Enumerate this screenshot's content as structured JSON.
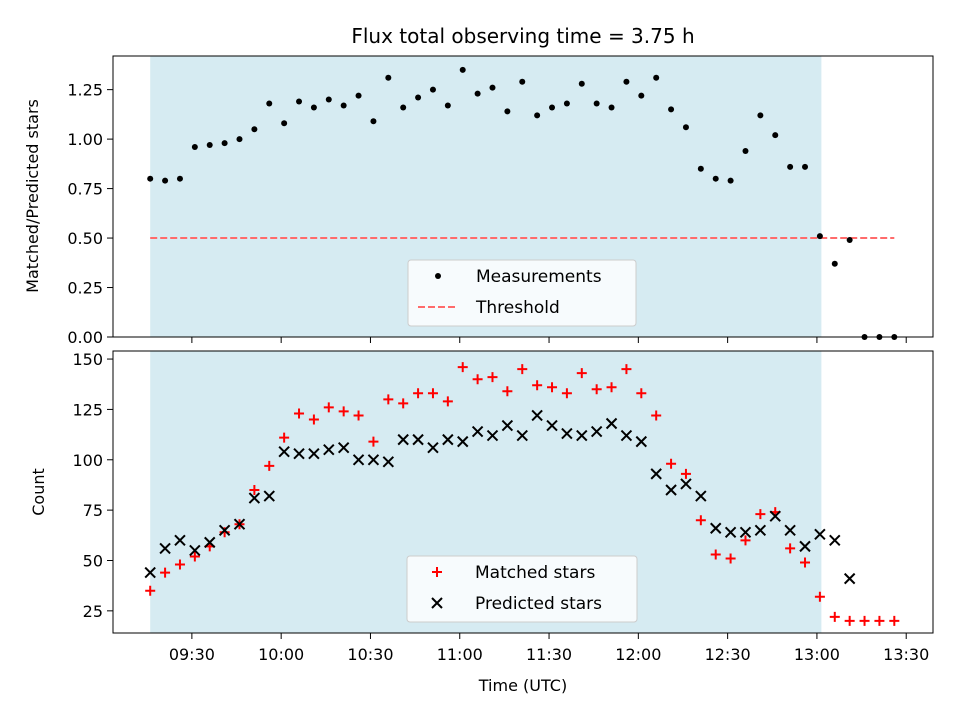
{
  "chart_data": [
    {
      "type": "scatter",
      "title": "Flux total observing time = 3.75 h",
      "xlabel": "",
      "ylabel": "Matched/Predicted stars",
      "ylim": [
        0,
        1.42
      ],
      "yticks": [
        0.0,
        0.25,
        0.5,
        0.75,
        1.0,
        1.25
      ],
      "ytick_labels": [
        "0.00",
        "0.25",
        "0.50",
        "0.75",
        "1.00",
        "1.25"
      ],
      "observing_window": {
        "start_min": 556,
        "end_min": 781.5
      },
      "series": [
        {
          "name": "Measurements",
          "marker": "dot",
          "color": "#000000",
          "x_min": [
            556,
            561,
            566,
            571,
            576,
            581,
            586,
            591,
            596,
            601,
            606,
            611,
            616,
            621,
            626,
            631,
            636,
            641,
            646,
            651,
            656,
            661,
            666,
            671,
            676,
            681,
            686,
            691,
            696,
            701,
            706,
            711,
            716,
            721,
            726,
            731,
            736,
            741,
            746,
            751,
            756,
            761,
            766,
            771,
            776,
            781,
            786,
            791,
            796,
            801,
            806
          ],
          "values": [
            0.8,
            0.79,
            0.8,
            0.96,
            0.97,
            0.98,
            1.0,
            1.05,
            1.18,
            1.08,
            1.19,
            1.16,
            1.2,
            1.17,
            1.22,
            1.09,
            1.31,
            1.16,
            1.21,
            1.25,
            1.17,
            1.35,
            1.23,
            1.26,
            1.14,
            1.29,
            1.12,
            1.16,
            1.18,
            1.28,
            1.18,
            1.16,
            1.29,
            1.22,
            1.31,
            1.15,
            1.06,
            0.85,
            0.8,
            0.79,
            0.94,
            1.12,
            1.02,
            0.86,
            0.86,
            0.51,
            0.37,
            0.49,
            0.0,
            0.0,
            0.0
          ]
        },
        {
          "name": "Threshold",
          "line_style": "dashed",
          "color": "#ff6b6b",
          "x_min": [
            556,
            806
          ],
          "values": [
            0.5,
            0.5
          ]
        }
      ],
      "legend": [
        "Measurements",
        "Threshold"
      ],
      "legend_position": "bottom-center"
    },
    {
      "type": "scatter",
      "title": "",
      "xlabel": "Time (UTC)",
      "ylabel": "Count",
      "ylim": [
        14,
        154
      ],
      "yticks": [
        25,
        50,
        75,
        100,
        125,
        150
      ],
      "ytick_labels": [
        "25",
        "50",
        "75",
        "100",
        "125",
        "150"
      ],
      "xlim_min": [
        543.5,
        819
      ],
      "xticks_min": [
        570,
        600,
        630,
        660,
        690,
        720,
        750,
        780,
        810
      ],
      "xtick_labels": [
        "09:30",
        "10:00",
        "10:30",
        "11:00",
        "11:30",
        "12:00",
        "12:30",
        "13:00",
        "13:30"
      ],
      "observing_window": {
        "start_min": 556,
        "end_min": 781.5
      },
      "series": [
        {
          "name": "Matched stars",
          "marker": "plus",
          "color": "#ff0000",
          "x_min": [
            556,
            561,
            566,
            571,
            576,
            581,
            586,
            591,
            596,
            601,
            606,
            611,
            616,
            621,
            626,
            631,
            636,
            641,
            646,
            651,
            656,
            661,
            666,
            671,
            676,
            681,
            686,
            691,
            696,
            701,
            706,
            711,
            716,
            721,
            726,
            731,
            736,
            741,
            746,
            751,
            756,
            761,
            766,
            771,
            776,
            781,
            786,
            791,
            796,
            801,
            806
          ],
          "values": [
            35,
            44,
            48,
            52,
            57,
            64,
            68,
            85,
            97,
            111,
            123,
            120,
            126,
            124,
            122,
            109,
            130,
            128,
            133,
            133,
            129,
            146,
            140,
            141,
            134,
            145,
            137,
            136,
            133,
            143,
            135,
            136,
            145,
            133,
            122,
            98,
            93,
            70,
            53,
            51,
            60,
            73,
            74,
            56,
            49,
            32,
            22,
            20,
            20,
            20,
            20
          ]
        },
        {
          "name": "Predicted stars",
          "marker": "x",
          "color": "#000000",
          "x_min": [
            556,
            561,
            566,
            571,
            576,
            581,
            586,
            591,
            596,
            601,
            606,
            611,
            616,
            621,
            626,
            631,
            636,
            641,
            646,
            651,
            656,
            661,
            666,
            671,
            676,
            681,
            686,
            691,
            696,
            701,
            706,
            711,
            716,
            721,
            726,
            731,
            736,
            741,
            746,
            751,
            756,
            761,
            766,
            771,
            776,
            781,
            786,
            791
          ],
          "values": [
            44,
            56,
            60,
            55,
            59,
            65,
            68,
            81,
            82,
            104,
            103,
            103,
            105,
            106,
            100,
            100,
            99,
            110,
            110,
            106,
            110,
            109,
            114,
            112,
            117,
            112,
            122,
            117,
            113,
            112,
            114,
            118,
            112,
            109,
            93,
            85,
            88,
            82,
            66,
            64,
            64,
            65,
            72,
            65,
            57,
            63,
            60,
            41
          ]
        }
      ],
      "legend": [
        "Matched stars",
        "Predicted stars"
      ],
      "legend_position": "bottom-center"
    }
  ]
}
